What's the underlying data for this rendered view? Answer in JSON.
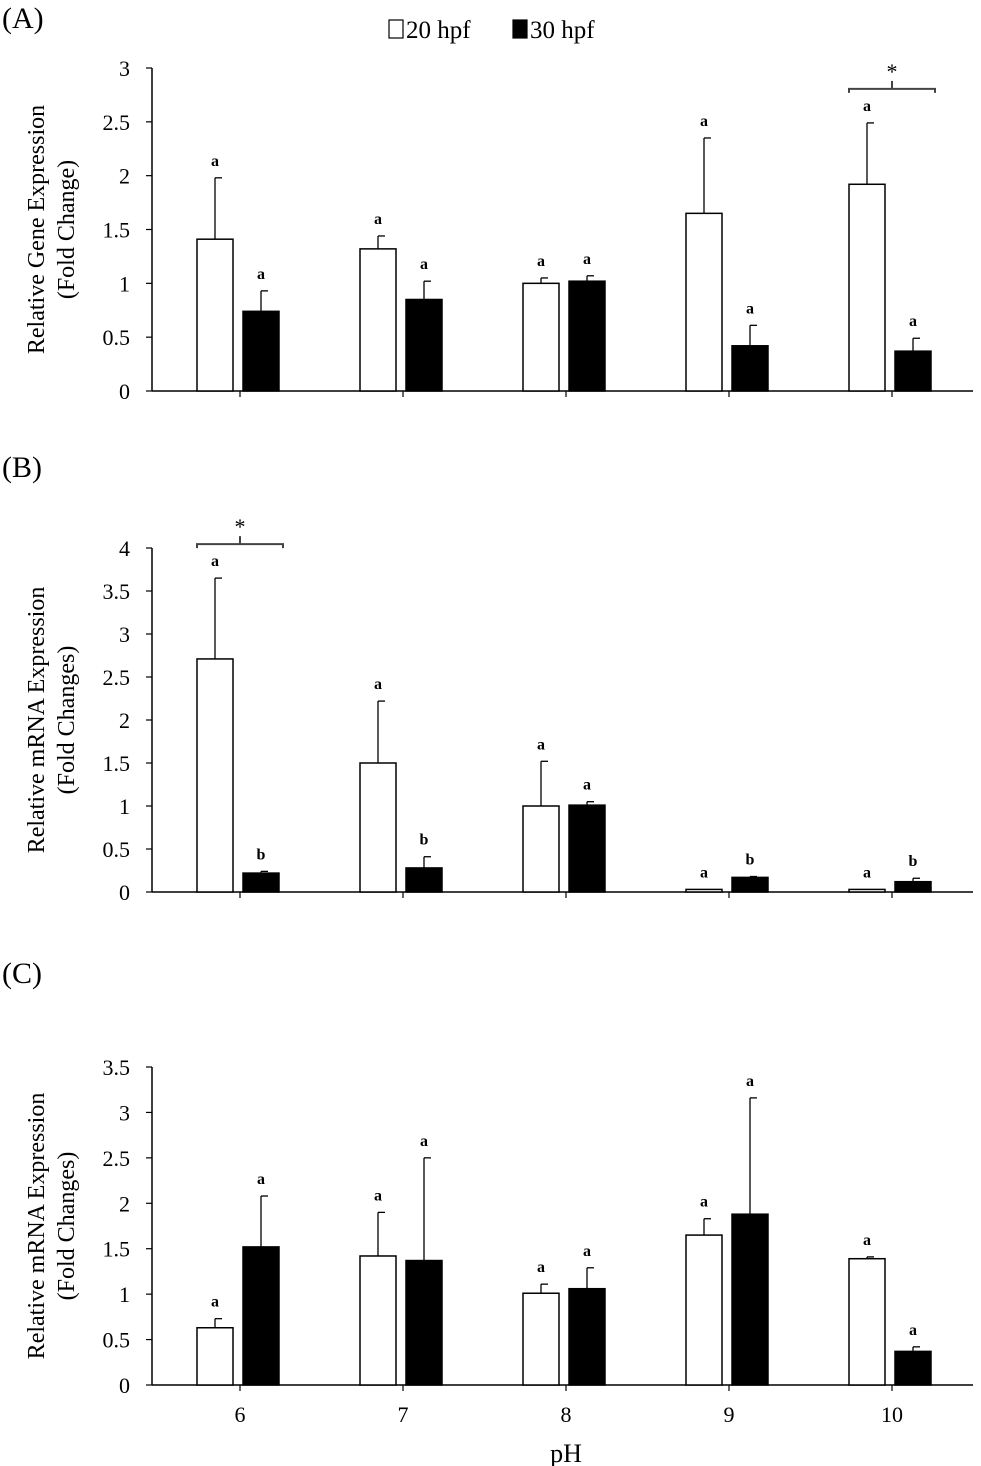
{
  "legend": {
    "items": [
      {
        "label": "20 hpf",
        "fill": "#ffffff"
      },
      {
        "label": "30 hpf",
        "fill": "#000000"
      }
    ],
    "position": "top-center"
  },
  "x_axis_title": "pH",
  "chart_data": [
    {
      "type": "bar",
      "panel_label": "(A)",
      "categories": [
        "6",
        "7",
        "8",
        "9",
        "10"
      ],
      "ylabel_line1": "Relative Gene Expression",
      "ylabel_line2": "(Fold Change)",
      "ylim": [
        0,
        3
      ],
      "yticks": [
        0,
        0.5,
        1,
        1.5,
        2,
        2.5,
        3
      ],
      "show_x_tick_labels": false,
      "grid": false,
      "series": [
        {
          "name": "20 hpf",
          "values": [
            1.41,
            1.32,
            1.0,
            1.65,
            1.92
          ],
          "errors": [
            0.57,
            0.12,
            0.05,
            0.7,
            0.57
          ],
          "letters": [
            "a",
            "a",
            "a",
            "a",
            "a"
          ]
        },
        {
          "name": "30 hpf",
          "values": [
            0.74,
            0.85,
            1.02,
            0.42,
            0.37
          ],
          "errors": [
            0.19,
            0.17,
            0.05,
            0.19,
            0.12
          ],
          "letters": [
            "a",
            "a",
            "a",
            "a",
            "a"
          ]
        }
      ],
      "significance": [
        {
          "category_index": 4,
          "symbol": "*"
        }
      ]
    },
    {
      "type": "bar",
      "panel_label": "(B)",
      "categories": [
        "6",
        "7",
        "8",
        "9",
        "10"
      ],
      "ylabel_line1": "Relative mRNA Expression",
      "ylabel_line2": "(Fold Changes)",
      "ylim": [
        0,
        4
      ],
      "yticks": [
        0,
        0.5,
        1,
        1.5,
        2,
        2.5,
        3,
        3.5,
        4
      ],
      "show_x_tick_labels": false,
      "grid": false,
      "series": [
        {
          "name": "20 hpf",
          "values": [
            2.71,
            1.5,
            1.0,
            0.03,
            0.03
          ],
          "errors": [
            0.94,
            0.72,
            0.52,
            0.0,
            0.0
          ],
          "letters": [
            "a",
            "a",
            "a",
            "a",
            "a"
          ]
        },
        {
          "name": "30 hpf",
          "values": [
            0.22,
            0.28,
            1.01,
            0.17,
            0.12
          ],
          "errors": [
            0.02,
            0.13,
            0.04,
            0.01,
            0.04
          ],
          "letters": [
            "b",
            "b",
            "a",
            "b",
            "b"
          ]
        }
      ],
      "significance": [
        {
          "category_index": 0,
          "symbol": "*"
        }
      ]
    },
    {
      "type": "bar",
      "panel_label": "(C)",
      "categories": [
        "6",
        "7",
        "8",
        "9",
        "10"
      ],
      "ylabel_line1": "Relative mRNA Expression",
      "ylabel_line2": "(Fold Changes)",
      "ylim": [
        0,
        3.5
      ],
      "yticks": [
        0,
        0.5,
        1,
        1.5,
        2,
        2.5,
        3,
        3.5
      ],
      "show_x_tick_labels": true,
      "grid": false,
      "series": [
        {
          "name": "20 hpf",
          "values": [
            0.63,
            1.42,
            1.01,
            1.65,
            1.39
          ],
          "errors": [
            0.1,
            0.48,
            0.1,
            0.18,
            0.02
          ],
          "letters": [
            "a",
            "a",
            "a",
            "a",
            "a"
          ]
        },
        {
          "name": "30 hpf",
          "values": [
            1.52,
            1.37,
            1.06,
            1.88,
            0.37
          ],
          "errors": [
            0.56,
            1.13,
            0.23,
            1.28,
            0.05
          ],
          "letters": [
            "a",
            "a",
            "a",
            "a",
            "a"
          ]
        }
      ],
      "significance": []
    }
  ]
}
